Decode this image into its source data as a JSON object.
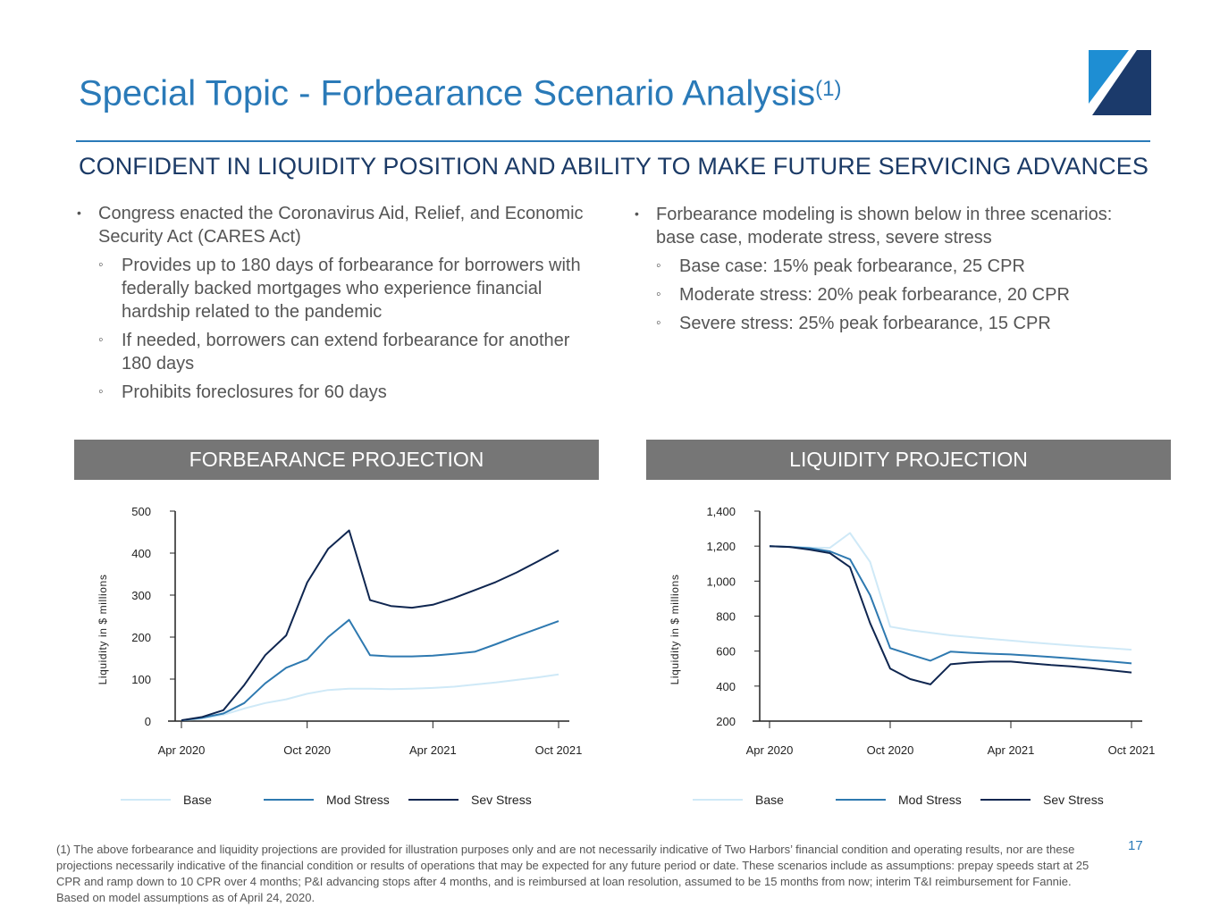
{
  "slide": {
    "title": "Special Topic - Forbearance Scenario Analysis",
    "title_sup": "(1)",
    "subtitle": "CONFIDENT IN LIQUIDITY POSITION AND ABILITY TO MAKE FUTURE SERVICING ADVANCES",
    "page_number": "17",
    "footnote": "(1) The above forbearance and liquidity projections are provided for illustration purposes only and are not necessarily indicative of Two Harbors’ financial condition and operating results, nor are these projections necessarily indicative of the financial condition or results of operations that may be expected for any future period or date. These scenarios include as assumptions: prepay speeds start at 25 CPR and ramp down to 10 CPR over 4 months; P&I advancing stops after 4 months, and is reimbursed at loan resolution, assumed to be 15 months from now; interim T&I reimbursement for Fannie. Based on model assumptions as of April 24, 2020.",
    "colors": {
      "title": "#2a7ab8",
      "subtitle": "#1b3a66",
      "panel_header": "#767676",
      "base": "#cfe9f7",
      "mod": "#2e79b0",
      "sev": "#0f2650"
    },
    "logo_icon": "company-logo-icon"
  },
  "left_bullets": [
    {
      "text": "Congress enacted the Coronavirus Aid, Relief, and Economic Security Act (CARES Act)",
      "sub": [
        "Provides up to 180 days of forbearance for borrowers with federally backed mortgages who experience financial hardship related to the pandemic",
        "If needed, borrowers can extend forbearance for another 180 days",
        "Prohibits foreclosures for 60 days"
      ]
    }
  ],
  "right_bullets": [
    {
      "text": "Forbearance modeling is shown below in three scenarios: base case, moderate stress, severe stress",
      "sub": [
        "Base case: 15% peak forbearance, 25 CPR",
        "Moderate stress: 20% peak forbearance, 20 CPR",
        "Severe stress: 25% peak forbearance, 15 CPR"
      ]
    }
  ],
  "panels": {
    "left_header": "FORBEARANCE PROJECTION",
    "right_header": "LIQUIDITY PROJECTION"
  },
  "chart_data": [
    {
      "type": "line",
      "title": "FORBEARANCE PROJECTION",
      "ylabel": "Liquidity in $ millions",
      "xlabel": "",
      "ylim": [
        0,
        500
      ],
      "yticks": [
        0,
        100,
        200,
        300,
        400,
        500
      ],
      "ytick_labels": [
        "0",
        "100",
        "200",
        "300",
        "400",
        "500"
      ],
      "x_tick_index": [
        0,
        6,
        12,
        18
      ],
      "x_tick_labels": [
        "Apr 2020",
        "Oct 2020",
        "Apr 2021",
        "Oct 2021"
      ],
      "x": [
        "Apr 2020",
        "May 2020",
        "Jun 2020",
        "Jul 2020",
        "Aug 2020",
        "Sep 2020",
        "Oct 2020",
        "Nov 2020",
        "Dec 2020",
        "Jan 2021",
        "Feb 2021",
        "Mar 2021",
        "Apr 2021",
        "May 2021",
        "Jun 2021",
        "Jul 2021",
        "Aug 2021",
        "Sep 2021",
        "Oct 2021"
      ],
      "series": [
        {
          "name": "Base",
          "color": "#cfe9f7",
          "values": [
            2,
            6,
            15,
            30,
            43,
            52,
            65,
            74,
            77,
            77,
            76,
            77,
            79,
            82,
            87,
            92,
            98,
            104,
            111
          ]
        },
        {
          "name": "Mod Stress",
          "color": "#2e79b0",
          "values": [
            2,
            8,
            18,
            43,
            90,
            127,
            147,
            200,
            241,
            157,
            154,
            154,
            156,
            160,
            165,
            183,
            202,
            220,
            238
          ]
        },
        {
          "name": "Sev Stress",
          "color": "#0f2650",
          "values": [
            2,
            10,
            26,
            86,
            157,
            204,
            330,
            410,
            454,
            288,
            274,
            270,
            277,
            293,
            312,
            331,
            354,
            380,
            407
          ]
        }
      ],
      "legend": [
        "Base",
        "Mod Stress",
        "Sev Stress"
      ],
      "legend_position": "bottom"
    },
    {
      "type": "line",
      "title": "LIQUIDITY PROJECTION",
      "ylabel": "Liquidity in $ millions",
      "xlabel": "",
      "ylim": [
        200,
        1400
      ],
      "yticks": [
        200,
        400,
        600,
        800,
        1000,
        1200,
        1400
      ],
      "ytick_labels": [
        "200",
        "400",
        "600",
        "800",
        "1,000",
        "1,200",
        "1,400"
      ],
      "x_tick_index": [
        0,
        6,
        12,
        18
      ],
      "x_tick_labels": [
        "Apr 2020",
        "Oct 2020",
        "Apr 2021",
        "Oct 2021"
      ],
      "x": [
        "Apr 2020",
        "May 2020",
        "Jun 2020",
        "Jul 2020",
        "Aug 2020",
        "Sep 2020",
        "Oct 2020",
        "Nov 2020",
        "Dec 2020",
        "Jan 2021",
        "Feb 2021",
        "Mar 2021",
        "Apr 2021",
        "May 2021",
        "Jun 2021",
        "Jul 2021",
        "Aug 2021",
        "Sep 2021",
        "Oct 2021"
      ],
      "series": [
        {
          "name": "Base",
          "color": "#cfe9f7",
          "values": [
            1200,
            1198,
            1192,
            1190,
            1275,
            1110,
            740,
            720,
            705,
            690,
            680,
            670,
            660,
            650,
            641,
            632,
            624,
            616,
            608
          ]
        },
        {
          "name": "Mod Stress",
          "color": "#2e79b0",
          "values": [
            1200,
            1195,
            1188,
            1170,
            1125,
            920,
            617,
            580,
            545,
            597,
            590,
            585,
            581,
            574,
            566,
            558,
            549,
            540,
            530
          ]
        },
        {
          "name": "Sev Stress",
          "color": "#0f2650",
          "values": [
            1200,
            1195,
            1180,
            1160,
            1080,
            760,
            500,
            440,
            410,
            525,
            535,
            540,
            540,
            530,
            520,
            513,
            503,
            490,
            478
          ]
        }
      ],
      "legend": [
        "Base",
        "Mod Stress",
        "Sev Stress"
      ],
      "legend_position": "bottom"
    }
  ]
}
